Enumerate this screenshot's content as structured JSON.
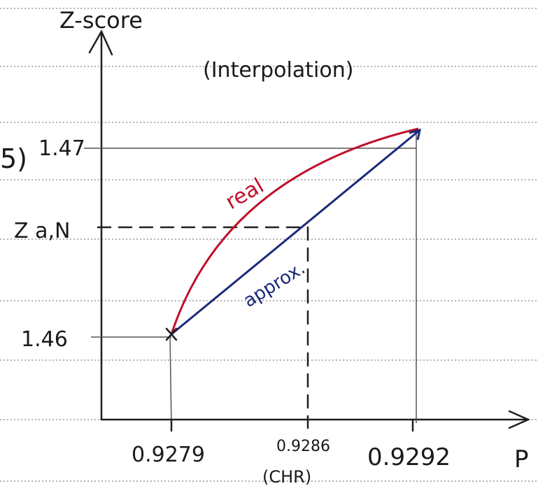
{
  "margin_fragment": "5)",
  "y_axis": {
    "label": "Z-score",
    "ticks": [
      "1.47",
      "Z a,N",
      "1.46"
    ]
  },
  "x_axis": {
    "label": "P",
    "ticks": [
      "0.9279",
      "0.9286",
      "0.9292"
    ],
    "tick_note": "(CHR)"
  },
  "title": "(Interpolation)",
  "curves": {
    "real": "real",
    "approx": "approx."
  }
}
